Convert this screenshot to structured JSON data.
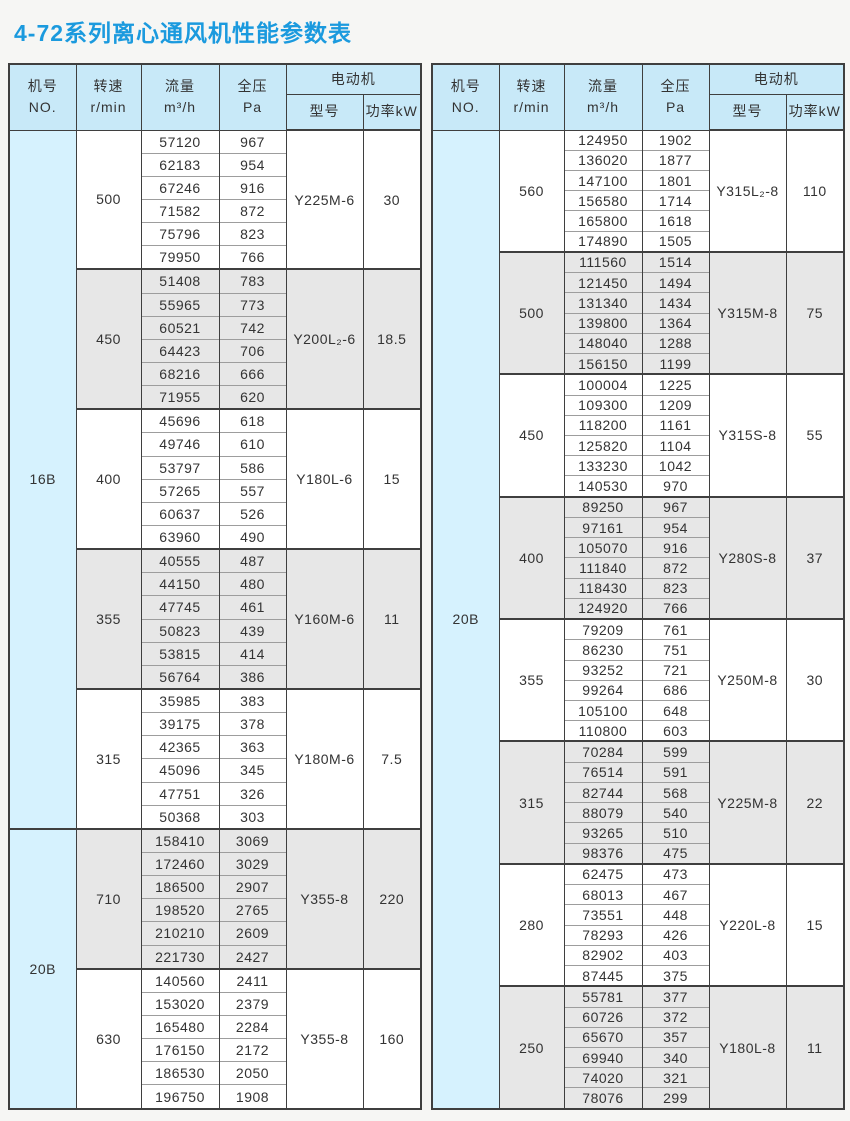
{
  "page": {
    "title": "4-72系列离心通风机性能参数表"
  },
  "colors": {
    "title": "#1b9ade",
    "header_bg": "#c8e9f8",
    "no_col_bg": "#d6f2fe",
    "stripe_bg": "#e7e7e7",
    "border_dark": "#3f3f3f",
    "border_light": "#9d9d9d"
  },
  "columns": {
    "no": "机号\nNO.",
    "speed": "转速\nr/min",
    "flow": "流量\nm³/h",
    "pressure": "全压\nPa",
    "motor": "电动机",
    "model": "型号",
    "power": "功率kW"
  },
  "tables": [
    {
      "name": "left",
      "machines": [
        {
          "no": "16B",
          "groups": [
            {
              "speed": "500",
              "model": "Y225M-6",
              "power": "30",
              "rows": [
                [
                  "57120",
                  "967"
                ],
                [
                  "62183",
                  "954"
                ],
                [
                  "67246",
                  "916"
                ],
                [
                  "71582",
                  "872"
                ],
                [
                  "75796",
                  "823"
                ],
                [
                  "79950",
                  "766"
                ]
              ]
            },
            {
              "speed": "450",
              "model": "Y200L₂-6",
              "power": "18.5",
              "rows": [
                [
                  "51408",
                  "783"
                ],
                [
                  "55965",
                  "773"
                ],
                [
                  "60521",
                  "742"
                ],
                [
                  "64423",
                  "706"
                ],
                [
                  "68216",
                  "666"
                ],
                [
                  "71955",
                  "620"
                ]
              ]
            },
            {
              "speed": "400",
              "model": "Y180L-6",
              "power": "15",
              "rows": [
                [
                  "45696",
                  "618"
                ],
                [
                  "49746",
                  "610"
                ],
                [
                  "53797",
                  "586"
                ],
                [
                  "57265",
                  "557"
                ],
                [
                  "60637",
                  "526"
                ],
                [
                  "63960",
                  "490"
                ]
              ]
            },
            {
              "speed": "355",
              "model": "Y160M-6",
              "power": "11",
              "rows": [
                [
                  "40555",
                  "487"
                ],
                [
                  "44150",
                  "480"
                ],
                [
                  "47745",
                  "461"
                ],
                [
                  "50823",
                  "439"
                ],
                [
                  "53815",
                  "414"
                ],
                [
                  "56764",
                  "386"
                ]
              ]
            },
            {
              "speed": "315",
              "model": "Y180M-6",
              "power": "7.5",
              "rows": [
                [
                  "35985",
                  "383"
                ],
                [
                  "39175",
                  "378"
                ],
                [
                  "42365",
                  "363"
                ],
                [
                  "45096",
                  "345"
                ],
                [
                  "47751",
                  "326"
                ],
                [
                  "50368",
                  "303"
                ]
              ]
            }
          ]
        },
        {
          "no": "20B",
          "groups": [
            {
              "speed": "710",
              "model": "Y355-8",
              "power": "220",
              "rows": [
                [
                  "158410",
                  "3069"
                ],
                [
                  "172460",
                  "3029"
                ],
                [
                  "186500",
                  "2907"
                ],
                [
                  "198520",
                  "2765"
                ],
                [
                  "210210",
                  "2609"
                ],
                [
                  "221730",
                  "2427"
                ]
              ]
            },
            {
              "speed": "630",
              "model": "Y355-8",
              "power": "160",
              "rows": [
                [
                  "140560",
                  "2411"
                ],
                [
                  "153020",
                  "2379"
                ],
                [
                  "165480",
                  "2284"
                ],
                [
                  "176150",
                  "2172"
                ],
                [
                  "186530",
                  "2050"
                ],
                [
                  "196750",
                  "1908"
                ]
              ]
            }
          ]
        }
      ]
    },
    {
      "name": "right",
      "machines": [
        {
          "no": "20B",
          "groups": [
            {
              "speed": "560",
              "model": "Y315L₂-8",
              "power": "110",
              "rows": [
                [
                  "124950",
                  "1902"
                ],
                [
                  "136020",
                  "1877"
                ],
                [
                  "147100",
                  "1801"
                ],
                [
                  "156580",
                  "1714"
                ],
                [
                  "165800",
                  "1618"
                ],
                [
                  "174890",
                  "1505"
                ]
              ]
            },
            {
              "speed": "500",
              "model": "Y315M-8",
              "power": "75",
              "rows": [
                [
                  "111560",
                  "1514"
                ],
                [
                  "121450",
                  "1494"
                ],
                [
                  "131340",
                  "1434"
                ],
                [
                  "139800",
                  "1364"
                ],
                [
                  "148040",
                  "1288"
                ],
                [
                  "156150",
                  "1199"
                ]
              ]
            },
            {
              "speed": "450",
              "model": "Y315S-8",
              "power": "55",
              "rows": [
                [
                  "100004",
                  "1225"
                ],
                [
                  "109300",
                  "1209"
                ],
                [
                  "118200",
                  "1161"
                ],
                [
                  "125820",
                  "1104"
                ],
                [
                  "133230",
                  "1042"
                ],
                [
                  "140530",
                  "970"
                ]
              ]
            },
            {
              "speed": "400",
              "model": "Y280S-8",
              "power": "37",
              "rows": [
                [
                  "89250",
                  "967"
                ],
                [
                  "97161",
                  "954"
                ],
                [
                  "105070",
                  "916"
                ],
                [
                  "111840",
                  "872"
                ],
                [
                  "118430",
                  "823"
                ],
                [
                  "124920",
                  "766"
                ]
              ]
            },
            {
              "speed": "355",
              "model": "Y250M-8",
              "power": "30",
              "rows": [
                [
                  "79209",
                  "761"
                ],
                [
                  "86230",
                  "751"
                ],
                [
                  "93252",
                  "721"
                ],
                [
                  "99264",
                  "686"
                ],
                [
                  "105100",
                  "648"
                ],
                [
                  "110800",
                  "603"
                ]
              ]
            },
            {
              "speed": "315",
              "model": "Y225M-8",
              "power": "22",
              "rows": [
                [
                  "70284",
                  "599"
                ],
                [
                  "76514",
                  "591"
                ],
                [
                  "82744",
                  "568"
                ],
                [
                  "88079",
                  "540"
                ],
                [
                  "93265",
                  "510"
                ],
                [
                  "98376",
                  "475"
                ]
              ]
            },
            {
              "speed": "280",
              "model": "Y220L-8",
              "power": "15",
              "rows": [
                [
                  "62475",
                  "473"
                ],
                [
                  "68013",
                  "467"
                ],
                [
                  "73551",
                  "448"
                ],
                [
                  "78293",
                  "426"
                ],
                [
                  "82902",
                  "403"
                ],
                [
                  "87445",
                  "375"
                ]
              ]
            },
            {
              "speed": "250",
              "model": "Y180L-8",
              "power": "11",
              "rows": [
                [
                  "55781",
                  "377"
                ],
                [
                  "60726",
                  "372"
                ],
                [
                  "65670",
                  "357"
                ],
                [
                  "69940",
                  "340"
                ],
                [
                  "74020",
                  "321"
                ],
                [
                  "78076",
                  "299"
                ]
              ]
            }
          ]
        }
      ]
    }
  ]
}
